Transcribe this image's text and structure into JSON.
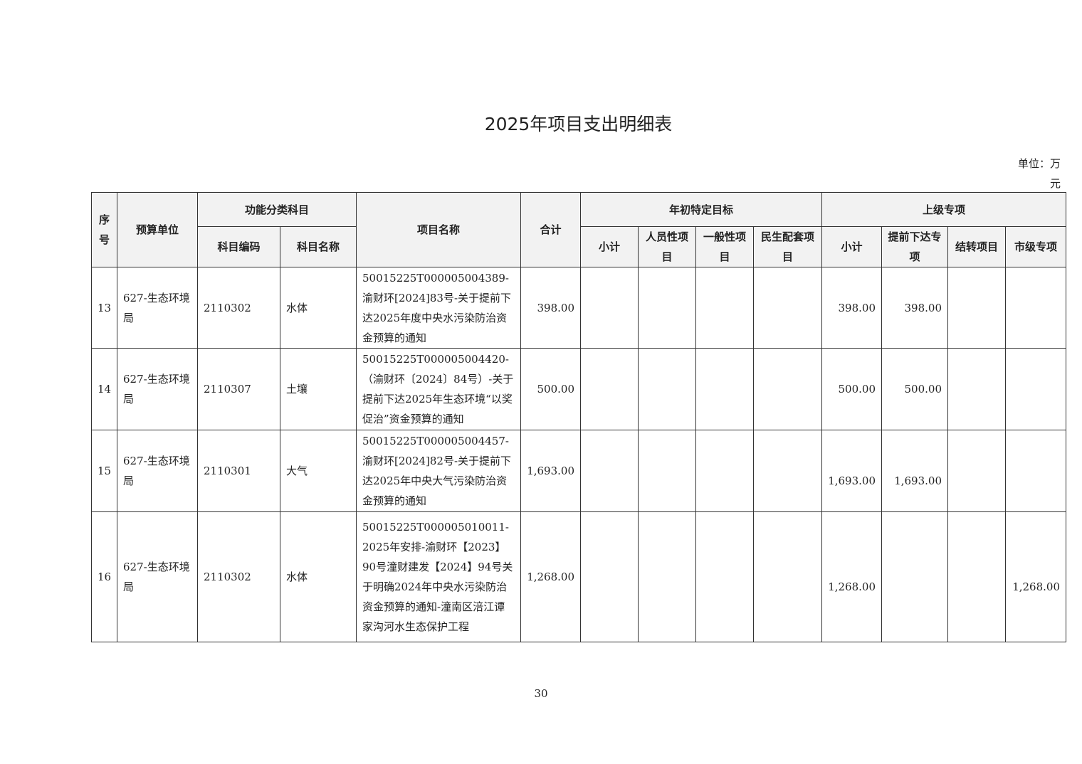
{
  "title": "2025年项目支出明细表",
  "unit": "单位：万元",
  "headers": {
    "seq": "序号",
    "unit": "预算单位",
    "func": "功能分类科目",
    "code": "科目编码",
    "name": "科目名称",
    "project": "项目名称",
    "total": "合计",
    "target": "年初特定目标",
    "t_sub": "小计",
    "t_person": "人员性项目",
    "t_general": "一般性项目",
    "t_livelihood": "民生配套项目",
    "upper": "上级专项",
    "u_sub": "小计",
    "u_advance": "提前下达专项",
    "u_carry": "结转项目",
    "u_city": "市级专项"
  },
  "rows": [
    {
      "seq": "13",
      "unit": "627-生态环境局",
      "code": "2110302",
      "name": "水体",
      "project": "50015225T000005004389-渝财环[2024]83号-关于提前下达2025年度中央水污染防治资金预算的通知",
      "total": "398.00",
      "t_sub": "",
      "t_person": "",
      "t_general": "",
      "t_livelihood": "",
      "u_sub": "398.00",
      "u_advance": "398.00",
      "u_carry": "",
      "u_city": ""
    },
    {
      "seq": "14",
      "unit": "627-生态环境局",
      "code": "2110307",
      "name": "土壤",
      "project": "50015225T000005004420-（渝财环〔2024〕84号）-关于提前下达2025年生态环境“以奖促治”资金预算的通知",
      "total": "500.00",
      "t_sub": "",
      "t_person": "",
      "t_general": "",
      "t_livelihood": "",
      "u_sub": "500.00",
      "u_advance": "500.00",
      "u_carry": "",
      "u_city": ""
    },
    {
      "seq": "15",
      "unit": "627-生态环境局",
      "code": "2110301",
      "name": "大气",
      "project": "50015225T000005004457-渝财环[2024]82号-关于提前下达2025年中央大气污染防治资金预算的通知",
      "total": "1,693.00",
      "t_sub": "",
      "t_person": "",
      "t_general": "",
      "t_livelihood": "",
      "u_sub": "1,693.00",
      "u_advance": "1,693.00",
      "u_carry": "",
      "u_city": ""
    },
    {
      "seq": "16",
      "unit": "627-生态环境局",
      "code": "2110302",
      "name": "水体",
      "project": "50015225T000005010011-2025年安排-渝财环【2023】90号潼财建发【2024】94号关于明确2024年中央水污染防治资金预算的通知-潼南区涪江谭家沟河水生态保护工程",
      "total": "1,268.00",
      "t_sub": "",
      "t_person": "",
      "t_general": "",
      "t_livelihood": "",
      "u_sub": "1,268.00",
      "u_advance": "",
      "u_carry": "",
      "u_city": "1,268.00"
    }
  ],
  "page_number": "30"
}
